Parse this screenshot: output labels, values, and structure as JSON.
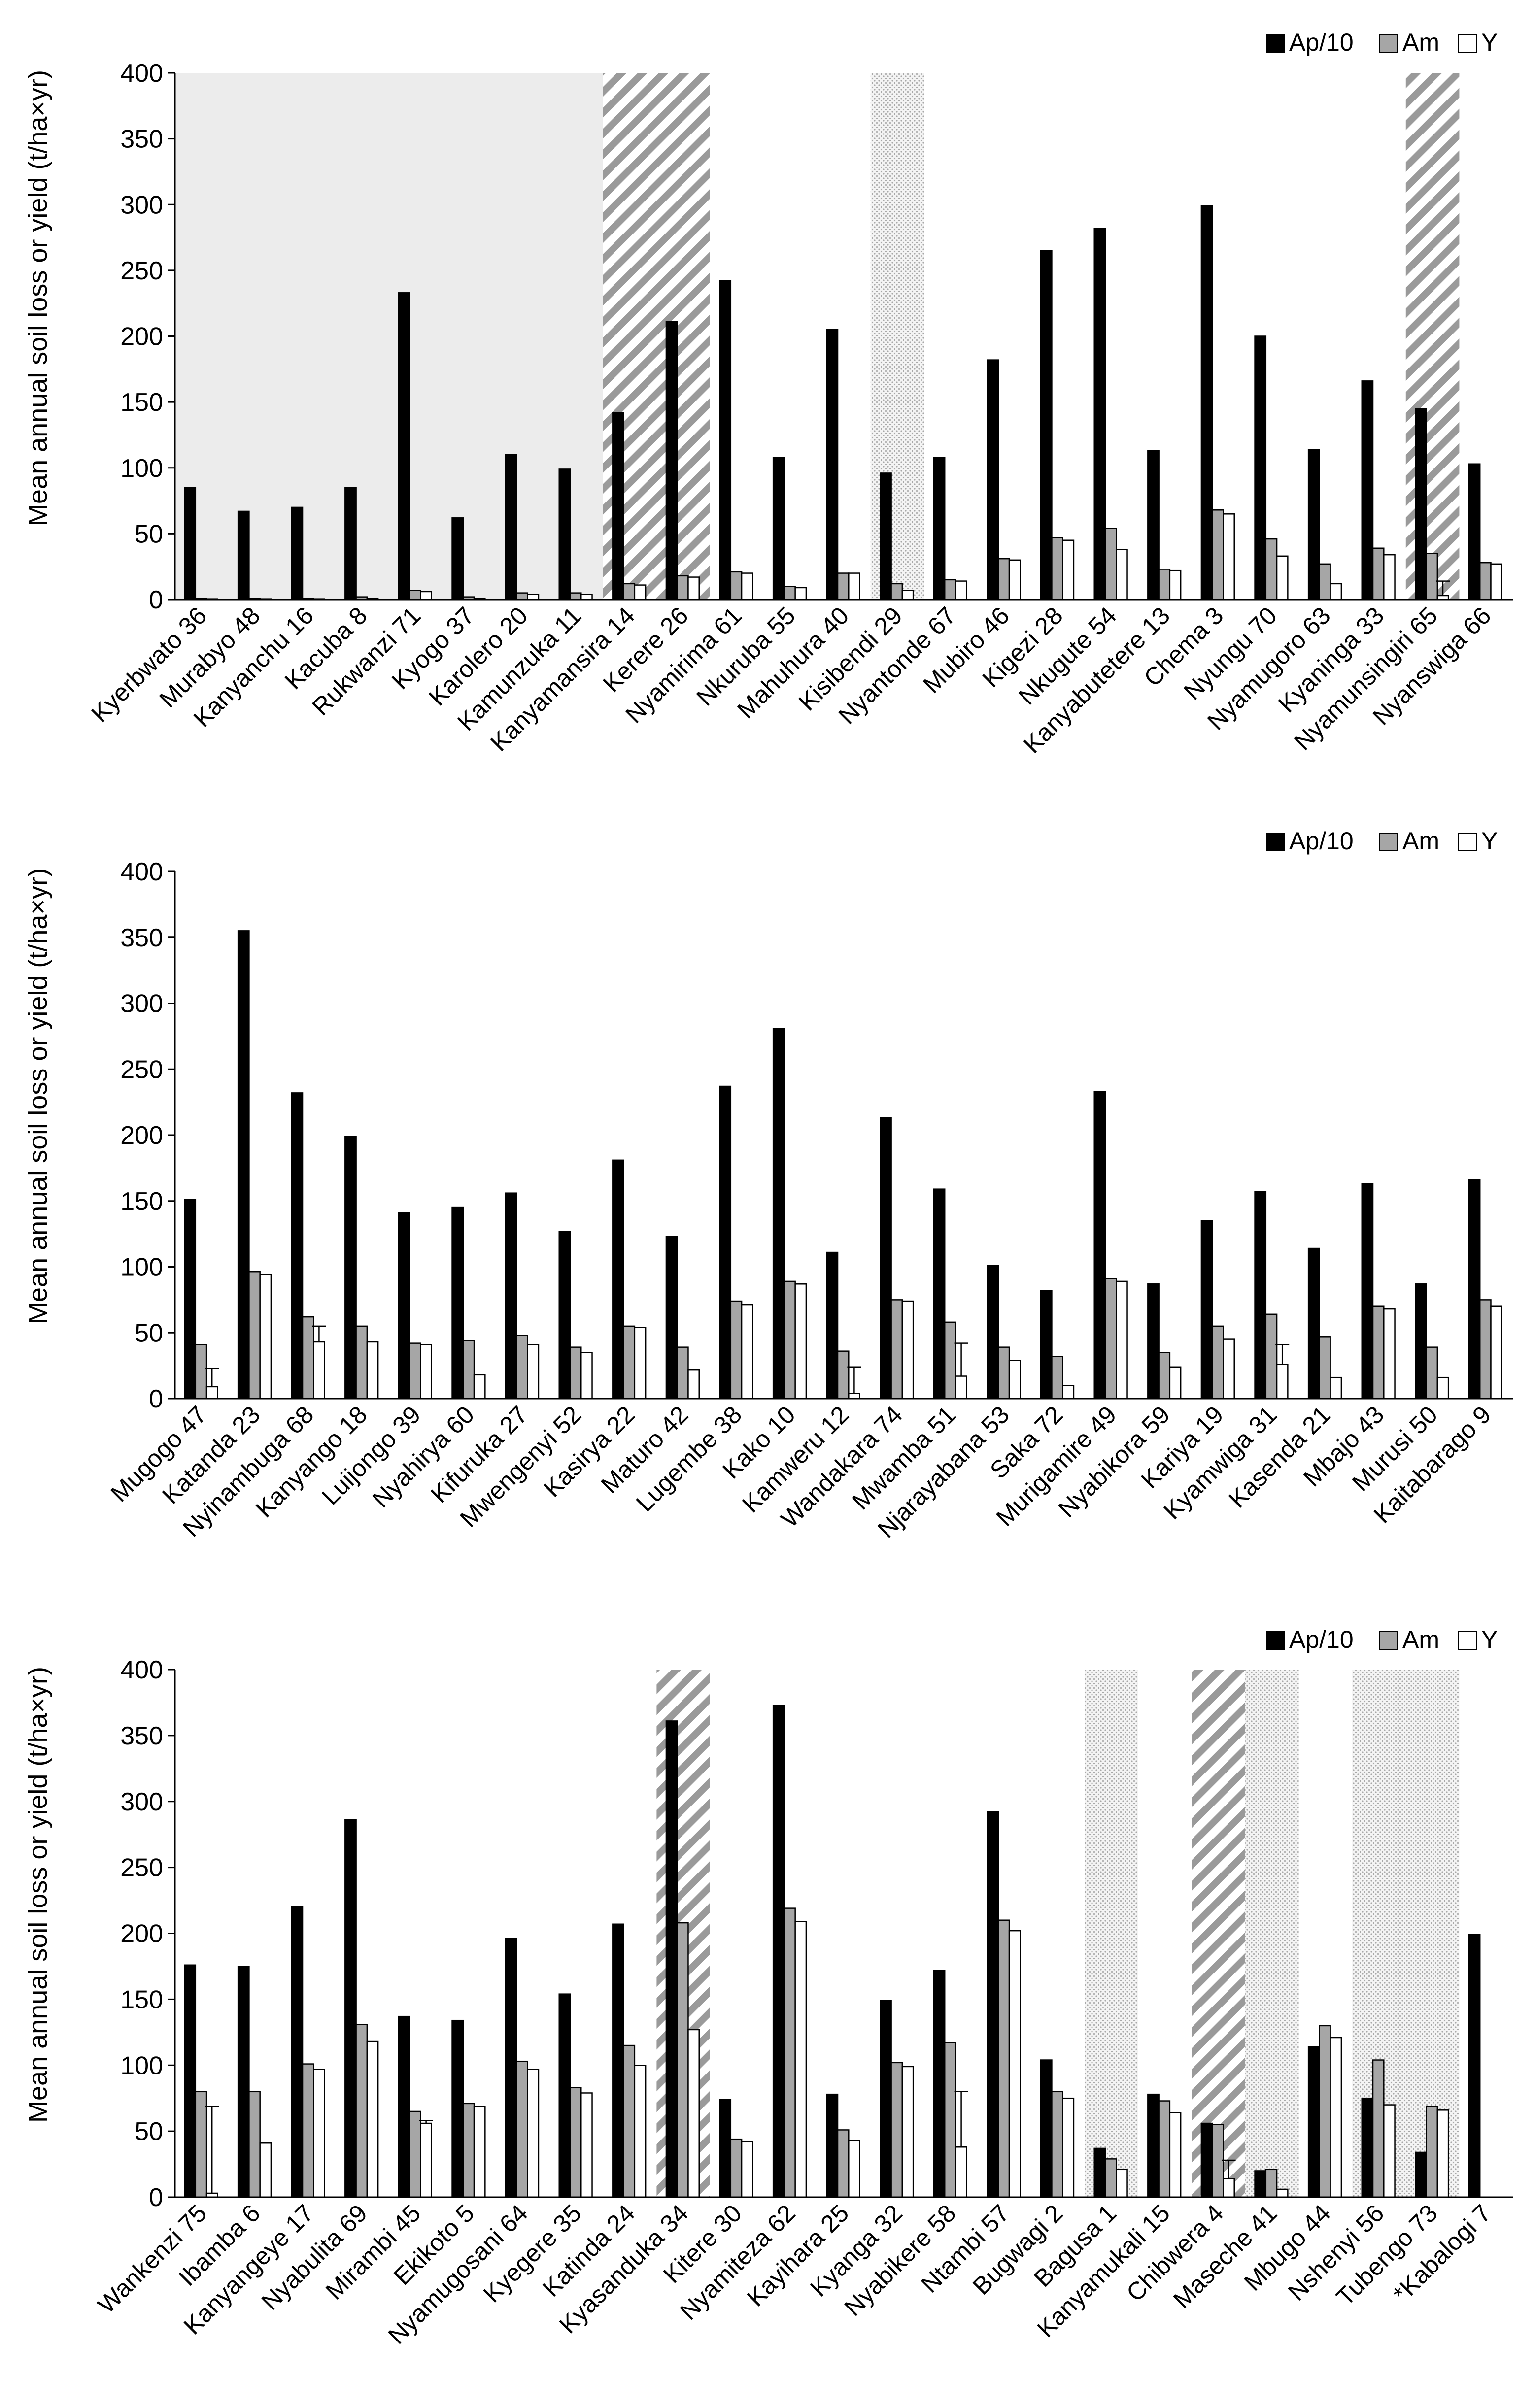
{
  "colors": {
    "ap": "#000000",
    "am": "#a6a6a6",
    "y": "#ffffff",
    "shade": "#ececec",
    "hatch": "#9a9a9a",
    "dots": "#9c9c9c",
    "axis": "#000000"
  },
  "legend": {
    "ap": "Ap/10",
    "am": "Am",
    "y": "Y"
  },
  "chart_data": [
    {
      "type": "bar",
      "ylabel": "Mean annual soil loss or yield (t/ha×yr)",
      "ylim": [
        0,
        400
      ],
      "yticks": [
        0,
        50,
        100,
        150,
        200,
        250,
        300,
        350,
        400
      ],
      "categories": [
        "Kyerbwato 36",
        "Murabyo 48",
        "Kanyanchu 16",
        "Kacuba 8",
        "Rukwanzi 71",
        "Kyogo 37",
        "Karolero 20",
        "Kamunzuka 11",
        "Kanyamansira 14",
        "Kerere 26",
        "Nyamirima 61",
        "Nkuruba 55",
        "Mahuhura 40",
        "Kisibendi 29",
        "Nyantonde 67",
        "Mubiro 46",
        "Kigezi 28",
        "Nkugute 54",
        "Kanyabutetere 13",
        "Chema 3",
        "Nyungu 70",
        "Nyamugoro 63",
        "Kyaninga 33",
        "Nyamunsingiri 65",
        "Nyanswiga 66"
      ],
      "series": [
        {
          "name": "Ap/10",
          "values": [
            85,
            67,
            70,
            85,
            233,
            62,
            110,
            99,
            142,
            211,
            242,
            108,
            205,
            96,
            108,
            182,
            265,
            282,
            113,
            299,
            200,
            114,
            166,
            145,
            103
          ]
        },
        {
          "name": "Am",
          "values": [
            1,
            1,
            1,
            2,
            7,
            2,
            5,
            5,
            12,
            18,
            21,
            10,
            20,
            12,
            15,
            31,
            47,
            54,
            23,
            68,
            46,
            27,
            39,
            35,
            28
          ]
        },
        {
          "name": "Y",
          "values": [
            0.5,
            0.5,
            0.5,
            1,
            6,
            1,
            4,
            4,
            11,
            17,
            20,
            9,
            20,
            7,
            14,
            30,
            45,
            38,
            22,
            65,
            33,
            12,
            34,
            3,
            27
          ]
        }
      ],
      "shaded_regions": [
        {
          "from": "Kyerbwato 36",
          "to": "Rukwanzi 71",
          "style": "grey"
        },
        {
          "from": "Kyogo 37",
          "to": "Kamunzuka 11",
          "style": "grey"
        },
        {
          "from": "Kanyamansira 14",
          "to": "Kerere 26",
          "style": "hatch"
        },
        {
          "from": "Kisibendi 29",
          "to": "Kisibendi 29",
          "style": "dots"
        },
        {
          "from": "Nyamunsingiri 65",
          "to": "Nyamunsingiri 65",
          "style": "hatch"
        }
      ],
      "error_bars": [
        {
          "category": "Nyamunsingiri 65",
          "series": "Y",
          "high": 14
        }
      ]
    },
    {
      "type": "bar",
      "ylabel": "Mean annual soil loss or yield (t/ha×yr)",
      "ylim": [
        0,
        400
      ],
      "yticks": [
        0,
        50,
        100,
        150,
        200,
        250,
        300,
        350,
        400
      ],
      "categories": [
        "Mugogo 47",
        "Katanda 23",
        "Nyinambuga 68",
        "Kanyango 18",
        "Luijongo 39",
        "Nyahirya 60",
        "Kifuruka 27",
        "Mwengenyi 52",
        "Kasirya 22",
        "Maturo 42",
        "Lugembe 38",
        "Kako 10",
        "Kamweru 12",
        "Wandakara 74",
        "Mwamba 51",
        "Njarayabana 53",
        "Saka 72",
        "Murigamire 49",
        "Nyabikora 59",
        "Kariya 19",
        "Kyamwiga 31",
        "Kasenda 21",
        "Mbajo 43",
        "Murusi 50",
        "Kaitabarago 9"
      ],
      "series": [
        {
          "name": "Ap/10",
          "values": [
            151,
            355,
            232,
            199,
            141,
            145,
            156,
            127,
            181,
            123,
            237,
            281,
            111,
            213,
            159,
            101,
            82,
            233,
            87,
            135,
            157,
            114,
            163,
            87,
            166
          ]
        },
        {
          "name": "Am",
          "values": [
            41,
            96,
            62,
            55,
            42,
            44,
            48,
            39,
            55,
            39,
            74,
            89,
            36,
            75,
            58,
            39,
            32,
            91,
            35,
            55,
            64,
            47,
            70,
            39,
            75
          ]
        },
        {
          "name": "Y",
          "values": [
            9,
            94,
            43,
            43,
            41,
            18,
            41,
            35,
            54,
            22,
            71,
            87,
            4,
            74,
            17,
            29,
            10,
            89,
            24,
            45,
            26,
            16,
            68,
            16,
            70
          ]
        }
      ],
      "shaded_regions": [],
      "error_bars": [
        {
          "category": "Mugogo 47",
          "series": "Y",
          "high": 23
        },
        {
          "category": "Nyinambuga 68",
          "series": "Y",
          "high": 55
        },
        {
          "category": "Kamweru 12",
          "series": "Y",
          "high": 24
        },
        {
          "category": "Mwamba 51",
          "series": "Y",
          "high": 42
        },
        {
          "category": "Kyamwiga 31",
          "series": "Y",
          "high": 41
        }
      ]
    },
    {
      "type": "bar",
      "ylabel": "Mean annual soil loss or yield (t/ha×yr)",
      "ylim": [
        0,
        400
      ],
      "yticks": [
        0,
        50,
        100,
        150,
        200,
        250,
        300,
        350,
        400
      ],
      "categories": [
        "Wankenzi 75",
        "Ibamba 6",
        "Kanyangeye 17",
        "Nyabulita 69",
        "Mirambi 45",
        "Ekikoto 5",
        "Nyamugosani 64",
        "Kyegere 35",
        "Katinda 24",
        "Kyasanduka 34",
        "Kitere 30",
        "Nyamiteza 62",
        "Kayihara 25",
        "Kyanga 32",
        "Nyabikere 58",
        "Ntambi 57",
        "Bugwagi 2",
        "Bagusa 1",
        "Kanyamukali 15",
        "Chibwera 4",
        "Maseche 41",
        "Mbugo 44",
        "Nshenyi 56",
        "Tubengo 73",
        "*Kabalogi 7"
      ],
      "series": [
        {
          "name": "Ap/10",
          "values": [
            176,
            175,
            220,
            286,
            137,
            134,
            196,
            154,
            207,
            361,
            74,
            373,
            78,
            149,
            172,
            292,
            104,
            37,
            78,
            56,
            20,
            114,
            75,
            34,
            199
          ]
        },
        {
          "name": "Am",
          "values": [
            80,
            80,
            101,
            131,
            65,
            71,
            103,
            83,
            115,
            208,
            44,
            219,
            51,
            102,
            117,
            210,
            80,
            29,
            73,
            55,
            21,
            130,
            104,
            69,
            0
          ]
        },
        {
          "name": "Y",
          "values": [
            3,
            41,
            97,
            118,
            56,
            69,
            97,
            79,
            100,
            127,
            42,
            209,
            43,
            99,
            38,
            202,
            75,
            21,
            64,
            14,
            6,
            121,
            70,
            66,
            0
          ]
        }
      ],
      "shaded_regions": [
        {
          "from": "Kyasanduka 34",
          "to": "Kyasanduka 34",
          "style": "hatch"
        },
        {
          "from": "Bagusa 1",
          "to": "Bagusa 1",
          "style": "dots"
        },
        {
          "from": "Chibwera 4",
          "to": "Chibwera 4",
          "style": "hatch"
        },
        {
          "from": "Maseche 41",
          "to": "Maseche 41",
          "style": "dots"
        },
        {
          "from": "Nshenyi 56",
          "to": "Tubengo 73",
          "style": "dots"
        }
      ],
      "error_bars": [
        {
          "category": "Wankenzi 75",
          "series": "Y",
          "high": 69
        },
        {
          "category": "Mirambi 45",
          "series": "Y",
          "high": 58
        },
        {
          "category": "Nyabikere 58",
          "series": "Y",
          "high": 80
        },
        {
          "category": "Chibwera 4",
          "series": "Y",
          "high": 28
        }
      ]
    }
  ]
}
